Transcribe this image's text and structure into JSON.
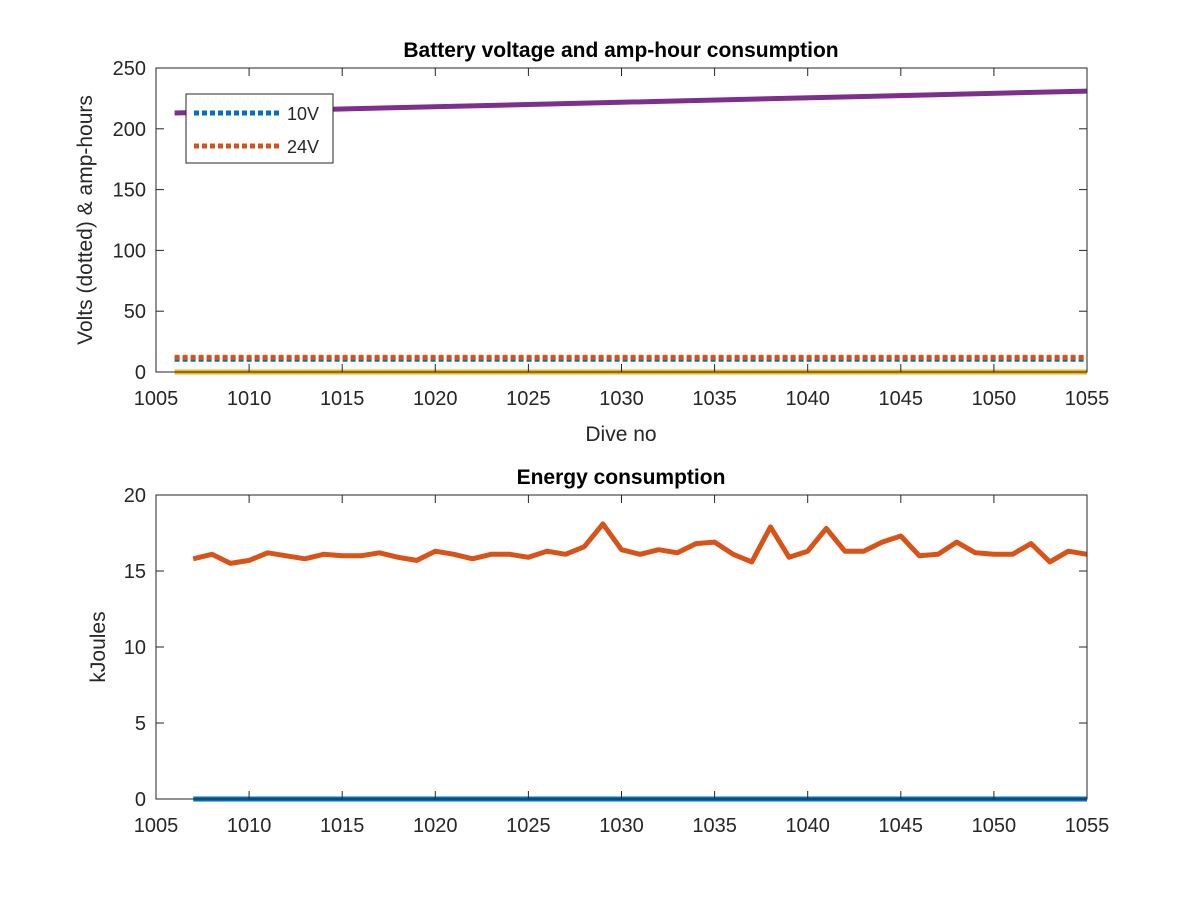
{
  "chart_data": [
    {
      "type": "line",
      "title": "Battery voltage and amp-hour consumption",
      "xlabel": "Dive no",
      "ylabel": "Volts (dotted) & amp-hours",
      "xlim": [
        1005,
        1055
      ],
      "ylim": [
        0,
        250
      ],
      "xticks": [
        1005,
        1010,
        1015,
        1020,
        1025,
        1030,
        1035,
        1040,
        1045,
        1050,
        1055
      ],
      "yticks": [
        0,
        50,
        100,
        150,
        200,
        250
      ],
      "grid": false,
      "legend_placement": "top-left",
      "series": [
        {
          "name": "10V",
          "style": "dotted",
          "color": "#0072BD",
          "x": [
            1006,
            1055
          ],
          "y": [
            10.5,
            10.5
          ]
        },
        {
          "name": "24V",
          "style": "dotted",
          "color": "#D95319",
          "x": [
            1006,
            1055
          ],
          "y": [
            12,
            12
          ]
        },
        {
          "style": "solid",
          "color": "#EDB120",
          "x": [
            1006,
            1055
          ],
          "y": [
            0,
            0
          ]
        },
        {
          "style": "solid",
          "color": "#7E2F8E",
          "x": [
            1006,
            1055
          ],
          "y": [
            213,
            231
          ]
        }
      ]
    },
    {
      "type": "line",
      "title": "Energy consumption",
      "xlabel": "",
      "ylabel": "kJoules",
      "xlim": [
        1005,
        1055
      ],
      "ylim": [
        0,
        20
      ],
      "xticks": [
        1005,
        1010,
        1015,
        1020,
        1025,
        1030,
        1035,
        1040,
        1045,
        1050,
        1055
      ],
      "yticks": [
        0,
        5,
        10,
        15,
        20
      ],
      "grid": false,
      "series": [
        {
          "style": "solid",
          "color": "#0072BD",
          "x": [
            1007,
            1055
          ],
          "y": [
            0,
            0
          ]
        },
        {
          "style": "solid",
          "color": "#D95319",
          "x": [
            1007,
            1008,
            1009,
            1010,
            1011,
            1012,
            1013,
            1014,
            1015,
            1016,
            1017,
            1018,
            1019,
            1020,
            1021,
            1022,
            1023,
            1024,
            1025,
            1026,
            1027,
            1028,
            1029,
            1030,
            1031,
            1032,
            1033,
            1034,
            1035,
            1036,
            1037,
            1038,
            1039,
            1040,
            1041,
            1042,
            1043,
            1044,
            1045,
            1046,
            1047,
            1048,
            1049,
            1050,
            1051,
            1052,
            1053,
            1054,
            1055
          ],
          "y": [
            15.8,
            16.1,
            15.5,
            15.7,
            16.2,
            16.0,
            15.8,
            16.1,
            16.0,
            16.0,
            16.2,
            15.9,
            15.7,
            16.3,
            16.1,
            15.8,
            16.1,
            16.1,
            15.9,
            16.3,
            16.1,
            16.6,
            18.1,
            16.4,
            16.1,
            16.4,
            16.2,
            16.8,
            16.9,
            16.1,
            15.6,
            17.9,
            15.9,
            16.3,
            17.8,
            16.3,
            16.3,
            16.9,
            17.3,
            16.0,
            16.1,
            16.9,
            16.2,
            16.1,
            16.1,
            16.8,
            15.6,
            16.3,
            16.1
          ]
        }
      ]
    }
  ]
}
